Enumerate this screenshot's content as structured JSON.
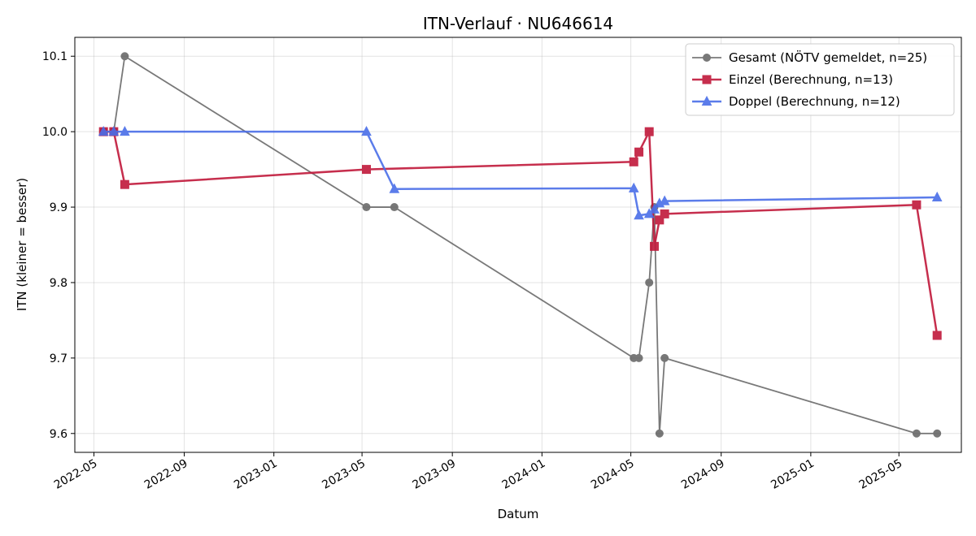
{
  "chart_data": {
    "type": "line",
    "title": "ITN-Verlauf · NU646614",
    "xlabel": "Datum",
    "ylabel": "ITN  (kleiner = besser)",
    "x_axis": "date",
    "xlim": [
      "2022-04-05",
      "2025-07-25"
    ],
    "ylim": [
      9.575,
      10.125
    ],
    "grid": true,
    "legend_position": "top-right",
    "x_ticks": [
      "2022-05-01",
      "2022-09-01",
      "2023-01-01",
      "2023-05-01",
      "2023-09-01",
      "2024-01-01",
      "2024-05-01",
      "2024-09-01",
      "2025-01-01",
      "2025-05-01"
    ],
    "x_tick_labels": [
      "2022-05",
      "2022-09",
      "2023-01",
      "2023-05",
      "2023-09",
      "2024-01",
      "2024-05",
      "2024-09",
      "2025-01",
      "2025-05"
    ],
    "y_ticks": [
      9.6,
      9.7,
      9.8,
      9.9,
      10.0,
      10.1
    ],
    "y_tick_labels": [
      "9.6",
      "9.7",
      "9.8",
      "9.9",
      "10.0",
      "10.1"
    ],
    "series": [
      {
        "name": "Gesamt (NÖTV gemeldet, n=25)",
        "color": "#404040",
        "marker": "circle",
        "points": [
          {
            "x": "2022-05-14",
            "y": 10.0
          },
          {
            "x": "2022-05-28",
            "y": 10.0
          },
          {
            "x": "2022-06-12",
            "y": 10.1
          },
          {
            "x": "2023-05-07",
            "y": 9.9
          },
          {
            "x": "2023-06-14",
            "y": 9.9
          },
          {
            "x": "2024-05-05",
            "y": 9.7
          },
          {
            "x": "2024-05-12",
            "y": 9.7
          },
          {
            "x": "2024-05-26",
            "y": 9.8
          },
          {
            "x": "2024-06-02",
            "y": 9.9
          },
          {
            "x": "2024-06-09",
            "y": 9.6
          },
          {
            "x": "2024-06-16",
            "y": 9.7
          },
          {
            "x": "2025-05-25",
            "y": 9.6
          },
          {
            "x": "2025-06-22",
            "y": 9.6
          }
        ]
      },
      {
        "name": "Einzel (Berechnung, n=13)",
        "color": "#c0183a",
        "marker": "square",
        "points": [
          {
            "x": "2022-05-14",
            "y": 10.0
          },
          {
            "x": "2022-05-28",
            "y": 10.0
          },
          {
            "x": "2022-06-12",
            "y": 9.93
          },
          {
            "x": "2023-05-07",
            "y": 9.95
          },
          {
            "x": "2024-05-05",
            "y": 9.96
          },
          {
            "x": "2024-05-12",
            "y": 9.973
          },
          {
            "x": "2024-05-26",
            "y": 10.0
          },
          {
            "x": "2024-06-02",
            "y": 9.848
          },
          {
            "x": "2024-06-09",
            "y": 9.883
          },
          {
            "x": "2024-06-16",
            "y": 9.891
          },
          {
            "x": "2025-05-25",
            "y": 9.903
          },
          {
            "x": "2025-06-22",
            "y": 9.73
          }
        ]
      },
      {
        "name": "Doppel (Berechnung, n=12)",
        "color": "#4a6ee8",
        "marker": "triangle",
        "points": [
          {
            "x": "2022-05-14",
            "y": 10.0
          },
          {
            "x": "2022-05-28",
            "y": 10.0
          },
          {
            "x": "2022-06-12",
            "y": 10.0
          },
          {
            "x": "2023-05-07",
            "y": 10.0
          },
          {
            "x": "2023-06-14",
            "y": 9.924
          },
          {
            "x": "2024-05-05",
            "y": 9.925
          },
          {
            "x": "2024-05-12",
            "y": 9.889
          },
          {
            "x": "2024-05-26",
            "y": 9.891
          },
          {
            "x": "2024-06-02",
            "y": 9.897
          },
          {
            "x": "2024-06-09",
            "y": 9.905
          },
          {
            "x": "2024-06-16",
            "y": 9.908
          },
          {
            "x": "2025-06-22",
            "y": 9.913
          }
        ]
      }
    ]
  }
}
